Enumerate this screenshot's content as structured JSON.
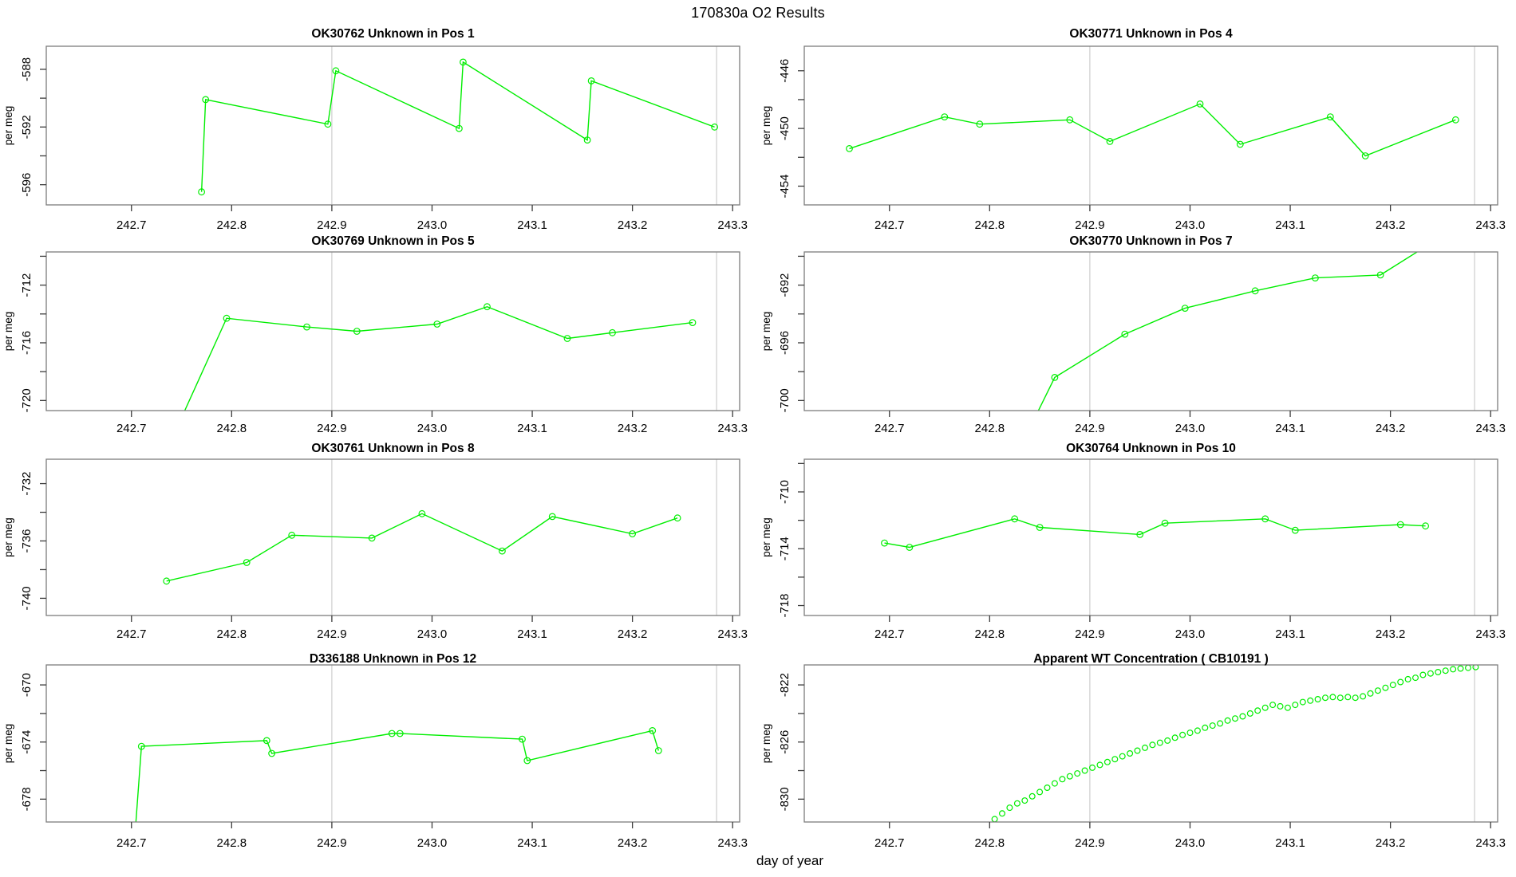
{
  "figure": {
    "title": "170830a  O2 Results",
    "xlabel": "day of year",
    "ylabel": "per meg"
  },
  "colors": {
    "series": "#00ee00",
    "gridline": "#d4d4d4",
    "box_border": "#7d7d7d",
    "tick": "#3c3c3c",
    "text": "#000000",
    "background": "#ffffff"
  },
  "x_axis": {
    "lim": [
      242.615,
      243.307
    ],
    "ticks": [
      242.7,
      242.8,
      242.9,
      243.0,
      243.1,
      243.2,
      243.3
    ],
    "gridlines": [
      242.9,
      243.284
    ]
  },
  "chart_data": [
    {
      "id": "OK30762",
      "title": "OK30762   Unknown in Pos 1",
      "type": "line",
      "marker": "circle",
      "ylim": [
        -597.4,
        -586.4
      ],
      "yticks": [
        -596,
        -594,
        -592,
        -590,
        -588
      ],
      "ytick_labels": [
        -596,
        -592,
        -588
      ],
      "points": [
        [
          242.77,
          -596.5
        ],
        [
          242.774,
          -590.1
        ],
        [
          242.896,
          -591.8
        ],
        [
          242.904,
          -588.1
        ],
        [
          243.027,
          -592.1
        ],
        [
          243.031,
          -587.5
        ],
        [
          243.155,
          -592.9
        ],
        [
          243.159,
          -588.8
        ],
        [
          243.282,
          -592.0
        ]
      ]
    },
    {
      "id": "OK30771",
      "title": "OK30771   Unknown in Pos 4",
      "type": "line",
      "marker": "circle",
      "ylim": [
        -455.3,
        -444.3
      ],
      "yticks": [
        -454,
        -452,
        -450,
        -448,
        -446
      ],
      "ytick_labels": [
        -454,
        -450,
        -446
      ],
      "points": [
        [
          242.66,
          -451.4
        ],
        [
          242.755,
          -449.2
        ],
        [
          242.79,
          -449.7
        ],
        [
          242.88,
          -449.4
        ],
        [
          242.92,
          -450.9
        ],
        [
          243.01,
          -448.3
        ],
        [
          243.05,
          -451.1
        ],
        [
          243.14,
          -449.2
        ],
        [
          243.175,
          -451.9
        ],
        [
          243.265,
          -449.4
        ]
      ]
    },
    {
      "id": "OK30769",
      "title": "OK30769   Unknown in Pos 5",
      "type": "line",
      "marker": "circle",
      "ylim": [
        -720.7,
        -709.7
      ],
      "yticks": [
        -720,
        -718,
        -716,
        -714,
        -712,
        -710
      ],
      "ytick_labels": [
        -720,
        -716,
        -712
      ],
      "points": [
        [
          242.748,
          -721.5
        ],
        [
          242.795,
          -714.3
        ],
        [
          242.875,
          -714.9
        ],
        [
          242.925,
          -715.2
        ],
        [
          243.005,
          -714.7
        ],
        [
          243.055,
          -713.5
        ],
        [
          243.135,
          -715.7
        ],
        [
          243.18,
          -715.3
        ],
        [
          243.26,
          -714.6
        ]
      ]
    },
    {
      "id": "OK30770",
      "title": "OK30770   Unknown in Pos 7",
      "type": "line",
      "marker": "circle",
      "ylim": [
        -700.7,
        -689.7
      ],
      "yticks": [
        -700,
        -698,
        -696,
        -694,
        -692,
        -690
      ],
      "ytick_labels": [
        -700,
        -696,
        -692
      ],
      "points": [
        [
          242.843,
          -701.5
        ],
        [
          242.865,
          -698.4
        ],
        [
          242.935,
          -695.4
        ],
        [
          242.995,
          -693.6
        ],
        [
          243.065,
          -692.4
        ],
        [
          243.125,
          -691.5
        ],
        [
          243.19,
          -691.3
        ],
        [
          243.245,
          -688.9
        ]
      ]
    },
    {
      "id": "OK30761",
      "title": "OK30761   Unknown in Pos 8",
      "type": "line",
      "marker": "circle",
      "ylim": [
        -741.2,
        -730.3
      ],
      "yticks": [
        -740,
        -738,
        -736,
        -734,
        -732
      ],
      "ytick_labels": [
        -740,
        -736,
        -732
      ],
      "points": [
        [
          242.735,
          -738.8
        ],
        [
          242.815,
          -737.5
        ],
        [
          242.86,
          -735.6
        ],
        [
          242.94,
          -735.8
        ],
        [
          242.99,
          -734.1
        ],
        [
          243.07,
          -736.7
        ],
        [
          243.12,
          -734.3
        ],
        [
          243.2,
          -735.5
        ],
        [
          243.245,
          -734.4
        ]
      ]
    },
    {
      "id": "OK30764",
      "title": "OK30764   Unknown in Pos 10",
      "type": "line",
      "marker": "circle",
      "ylim": [
        -718.7,
        -707.7
      ],
      "yticks": [
        -718,
        -716,
        -714,
        -712,
        -710,
        -708
      ],
      "ytick_labels": [
        -718,
        -714,
        -710
      ],
      "points": [
        [
          242.695,
          -713.6
        ],
        [
          242.72,
          -713.9
        ],
        [
          242.825,
          -711.9
        ],
        [
          242.85,
          -712.5
        ],
        [
          242.95,
          -713.0
        ],
        [
          242.975,
          -712.2
        ],
        [
          243.075,
          -711.9
        ],
        [
          243.105,
          -712.7
        ],
        [
          243.21,
          -712.3
        ],
        [
          243.235,
          -712.4
        ]
      ]
    },
    {
      "id": "D336188",
      "title": "D336188   Unknown in Pos 12",
      "type": "line",
      "marker": "circle",
      "ylim": [
        -679.6,
        -668.6
      ],
      "yticks": [
        -678,
        -676,
        -674,
        -672,
        -670
      ],
      "ytick_labels": [
        -678,
        -674,
        -670
      ],
      "points": [
        [
          242.703,
          -681.0
        ],
        [
          242.71,
          -674.3
        ],
        [
          242.835,
          -673.9
        ],
        [
          242.84,
          -674.8
        ],
        [
          242.96,
          -673.4
        ],
        [
          242.968,
          -673.4
        ],
        [
          243.09,
          -673.8
        ],
        [
          243.095,
          -675.3
        ],
        [
          243.22,
          -673.2
        ],
        [
          243.226,
          -674.6
        ]
      ]
    },
    {
      "id": "CB10191",
      "title": "Apparent WT Concentration ( CB10191 )",
      "type": "scatter",
      "marker": "circle",
      "ylim": [
        -831.6,
        -820.6
      ],
      "yticks": [
        -830,
        -828,
        -826,
        -824,
        -822
      ],
      "ytick_labels": [
        -830,
        -826,
        -822
      ],
      "points": [
        [
          242.805,
          -831.4
        ],
        [
          242.8125,
          -831.0
        ],
        [
          242.82,
          -830.6
        ],
        [
          242.8275,
          -830.3
        ],
        [
          242.835,
          -830.1
        ],
        [
          242.8425,
          -829.8
        ],
        [
          242.85,
          -829.5
        ],
        [
          242.8575,
          -829.2
        ],
        [
          242.865,
          -828.9
        ],
        [
          242.8725,
          -828.6
        ],
        [
          242.88,
          -828.4
        ],
        [
          242.8875,
          -828.2
        ],
        [
          242.895,
          -828.0
        ],
        [
          242.9025,
          -827.8
        ],
        [
          242.91,
          -827.6
        ],
        [
          242.9175,
          -827.4
        ],
        [
          242.925,
          -827.2
        ],
        [
          242.9325,
          -827.0
        ],
        [
          242.94,
          -826.8
        ],
        [
          242.9475,
          -826.6
        ],
        [
          242.955,
          -826.4
        ],
        [
          242.9625,
          -826.2
        ],
        [
          242.97,
          -826.05
        ],
        [
          242.9775,
          -825.9
        ],
        [
          242.985,
          -825.7
        ],
        [
          242.9925,
          -825.5
        ],
        [
          243.0,
          -825.35
        ],
        [
          243.0075,
          -825.2
        ],
        [
          243.015,
          -825.0
        ],
        [
          243.0225,
          -824.85
        ],
        [
          243.03,
          -824.7
        ],
        [
          243.0375,
          -824.5
        ],
        [
          243.045,
          -824.35
        ],
        [
          243.0525,
          -824.2
        ],
        [
          243.06,
          -824.0
        ],
        [
          243.0675,
          -823.8
        ],
        [
          243.075,
          -823.6
        ],
        [
          243.0825,
          -823.4
        ],
        [
          243.09,
          -823.5
        ],
        [
          243.0975,
          -823.6
        ],
        [
          243.105,
          -823.4
        ],
        [
          243.1125,
          -823.2
        ],
        [
          243.12,
          -823.1
        ],
        [
          243.1275,
          -823.0
        ],
        [
          243.135,
          -822.9
        ],
        [
          243.1425,
          -822.85
        ],
        [
          243.15,
          -822.9
        ],
        [
          243.1575,
          -822.85
        ],
        [
          243.165,
          -822.9
        ],
        [
          243.1725,
          -822.8
        ],
        [
          243.18,
          -822.6
        ],
        [
          243.1875,
          -822.4
        ],
        [
          243.195,
          -822.2
        ],
        [
          243.2025,
          -822.0
        ],
        [
          243.21,
          -821.8
        ],
        [
          243.2175,
          -821.6
        ],
        [
          243.225,
          -821.5
        ],
        [
          243.2325,
          -821.3
        ],
        [
          243.24,
          -821.2
        ],
        [
          243.2475,
          -821.1
        ],
        [
          243.255,
          -821.0
        ],
        [
          243.2625,
          -820.9
        ],
        [
          243.27,
          -820.85
        ],
        [
          243.2775,
          -820.8
        ],
        [
          243.285,
          -820.75
        ]
      ]
    }
  ]
}
